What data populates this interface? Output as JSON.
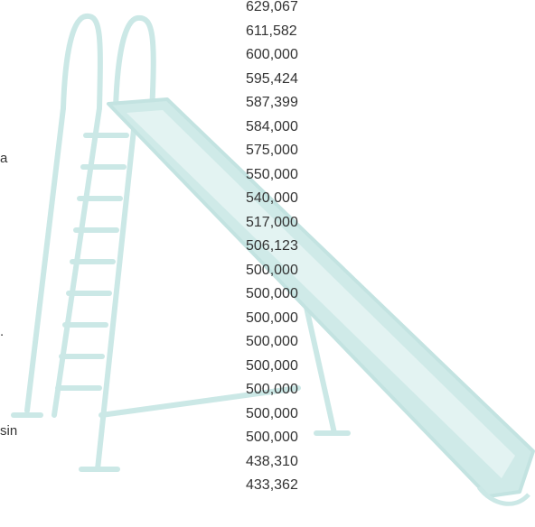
{
  "fragments": [
    "a",
    ".",
    "sin"
  ],
  "numbers": [
    "629,067",
    "611,582",
    "600,000",
    "595,424",
    "587,399",
    "584,000",
    "575,000",
    "550,000",
    "540,000",
    "517,000",
    "506,123",
    "500,000",
    "500,000",
    "500,000",
    "500,000",
    "500,000",
    "500,000",
    "500,000",
    "500,000",
    "438,310",
    "433,362"
  ]
}
